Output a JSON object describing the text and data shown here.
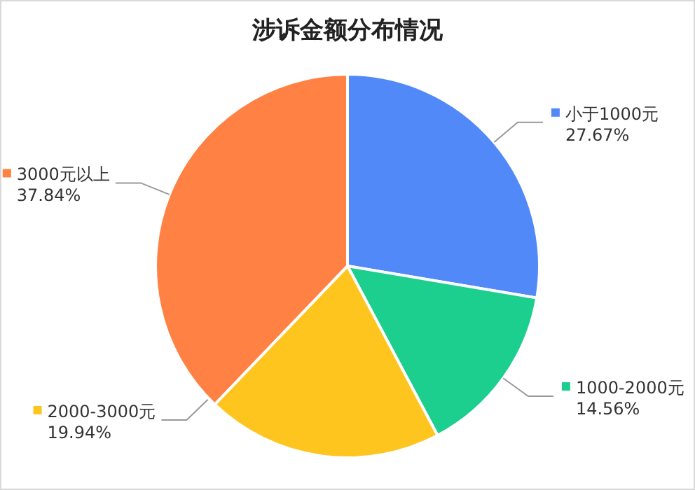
{
  "chart_data": {
    "type": "pie",
    "title": "涉诉金额分布情况",
    "categories": [
      "小于1000元",
      "1000-2000元",
      "2000-3000元",
      "3000元以上"
    ],
    "values": [
      27.67,
      14.56,
      19.94,
      37.84
    ],
    "colors": [
      "#5189f8",
      "#1ccf8e",
      "#fdc51e",
      "#ff8244"
    ],
    "value_labels": [
      "27.67%",
      "14.56%",
      "19.94%",
      "37.84%"
    ],
    "legend": "right"
  }
}
